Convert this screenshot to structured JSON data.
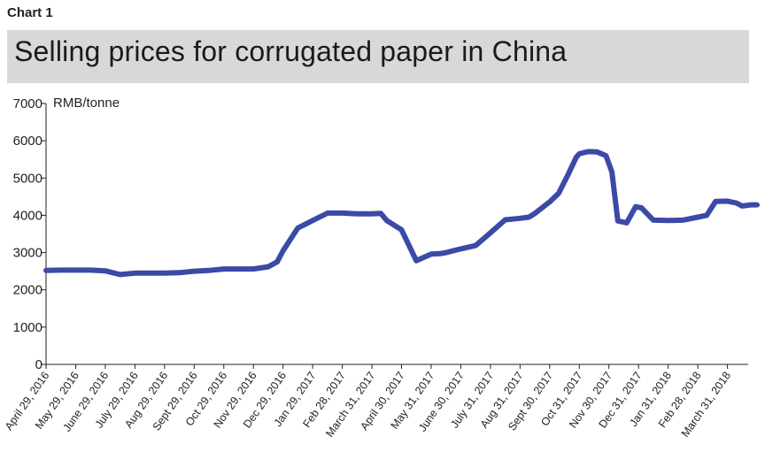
{
  "header": {
    "chart_label": "Chart 1",
    "title": "Selling prices for corrugated paper in China"
  },
  "colors": {
    "line": "#3a4aa6",
    "title_band": "#d7d8d9",
    "axis": "#222222"
  },
  "chart_data": {
    "type": "line",
    "title": "Selling prices for corrugated paper in China",
    "ylabel": "RMB/tonne",
    "xlabel": "",
    "ylim": [
      0,
      7000
    ],
    "yticks": [
      0,
      1000,
      2000,
      3000,
      4000,
      5000,
      6000,
      7000
    ],
    "grid": false,
    "xticks": [
      "April 29, 2016",
      "May 29, 2016",
      "June 29, 2016",
      "July 29, 2016",
      "Aug 29, 2016",
      "Sept 29, 2016",
      "Oct 29, 2016",
      "Nov 29, 2016",
      "Dec 29, 2016",
      "Jan 29, 2017",
      "Feb 28, 2017",
      "March 31, 2017",
      "April 30, 2017",
      "May 31, 2017",
      "June 30, 2017",
      "July 31, 2017",
      "Aug 31, 2017",
      "Sept 30, 2017",
      "Oct 31, 2017",
      "Nov 30, 2017",
      "Dec 31, 2017",
      "Jan 31, 2018",
      "Feb 28, 2018",
      "March 31, 2018"
    ],
    "series": [
      {
        "x": [
          0,
          0.5,
          1,
          1.5,
          2,
          2.5,
          3,
          3.5,
          4,
          4.5,
          5,
          5.5,
          6,
          6.5,
          7,
          7.5,
          7.8,
          8,
          8.5,
          9,
          9.5,
          10,
          10.5,
          10.8,
          11,
          11.3,
          11.5,
          12,
          12.3,
          12.5,
          13,
          13.3,
          13.5,
          14,
          14.5,
          15,
          15.5,
          16,
          16.3,
          16.5,
          17,
          17.3,
          17.6,
          17.9,
          18,
          18.3,
          18.6,
          18.9,
          19.1,
          19.3,
          19.6,
          19.9,
          20.1,
          20.5,
          21,
          21.5,
          22,
          22.3,
          22.6,
          23,
          23.3,
          23.5,
          23.8,
          24
        ],
        "values": [
          2520,
          2530,
          2530,
          2530,
          2510,
          2410,
          2450,
          2450,
          2450,
          2460,
          2500,
          2520,
          2560,
          2560,
          2560,
          2620,
          2750,
          3050,
          3660,
          3860,
          4060,
          4060,
          4040,
          4040,
          4040,
          4050,
          3860,
          3610,
          3110,
          2780,
          2960,
          2970,
          3000,
          3100,
          3190,
          3530,
          3880,
          3920,
          3950,
          4050,
          4360,
          4590,
          5060,
          5560,
          5650,
          5710,
          5700,
          5600,
          5160,
          3850,
          3800,
          4230,
          4200,
          3870,
          3860,
          3870,
          3950,
          4000,
          4370,
          4380,
          4330,
          4250,
          4280,
          4280
        ]
      }
    ]
  }
}
